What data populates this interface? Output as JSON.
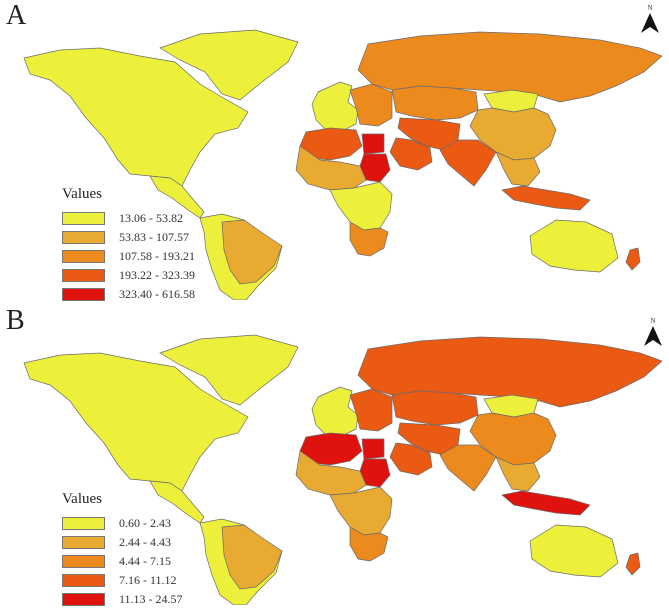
{
  "panels": [
    {
      "letter": "A",
      "north_label": "N",
      "legend": {
        "title": "Values",
        "items": [
          {
            "label": "13.06 - 53.82",
            "color": "#ecf03b"
          },
          {
            "label": "53.83 - 107.57",
            "color": "#e8aa30"
          },
          {
            "label": "107.58 - 193.21",
            "color": "#ec8a1e"
          },
          {
            "label": "193.22 - 323.39",
            "color": "#ea5a12"
          },
          {
            "label": "323.40 - 616.58",
            "color": "#e0120e"
          }
        ]
      },
      "regions": {
        "north_america": 0,
        "greenland": 0,
        "central_america": 0,
        "south_america": 0,
        "brazil": 1,
        "europe_west": 0,
        "europe_east": 2,
        "russia": 2,
        "central_asia": 2,
        "mongolia": 0,
        "china": 1,
        "middle_east": 3,
        "saudi": 3,
        "egypt": 4,
        "sudan": 4,
        "north_africa": 3,
        "west_africa": 1,
        "central_africa": 0,
        "southern_africa": 2,
        "south_asia": 3,
        "southeast_asia": 1,
        "indonesia": 3,
        "australia": 0,
        "new_zealand": 3
      }
    },
    {
      "letter": "B",
      "north_label": "N",
      "legend": {
        "title": "Values",
        "items": [
          {
            "label": "0.60 - 2.43",
            "color": "#ecf03b"
          },
          {
            "label": "2.44 - 4.43",
            "color": "#e8aa30"
          },
          {
            "label": "4.44 - 7.15",
            "color": "#ec8a1e"
          },
          {
            "label": "7.16 - 11.12",
            "color": "#ea5a12"
          },
          {
            "label": "11.13 - 24.57",
            "color": "#e0120e"
          }
        ]
      },
      "regions": {
        "north_america": 0,
        "greenland": 0,
        "central_america": 0,
        "south_america": 0,
        "brazil": 1,
        "europe_west": 0,
        "europe_east": 3,
        "russia": 3,
        "central_asia": 3,
        "mongolia": 0,
        "china": 2,
        "middle_east": 3,
        "saudi": 3,
        "egypt": 4,
        "sudan": 4,
        "north_africa": 4,
        "west_africa": 1,
        "central_africa": 1,
        "southern_africa": 2,
        "south_asia": 2,
        "southeast_asia": 1,
        "indonesia": 4,
        "australia": 0,
        "new_zealand": 3
      }
    }
  ]
}
